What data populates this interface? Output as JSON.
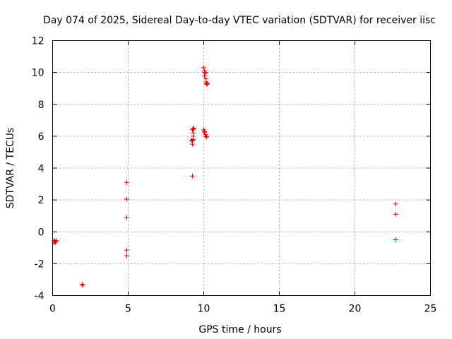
{
  "chart_data": {
    "type": "scatter",
    "title": "Day 074 of 2025, Sidereal Day-to-day VTEC variation (SDTVAR) for receiver iisc",
    "xlabel": "GPS time / hours",
    "ylabel": "SDTVAR / TECUs",
    "xlim": [
      0,
      25
    ],
    "ylim": [
      -4,
      12
    ],
    "xticks": [
      0,
      5,
      10,
      15,
      20,
      25
    ],
    "yticks": [
      -4,
      -2,
      0,
      2,
      4,
      6,
      8,
      10,
      12
    ],
    "grid": true,
    "marker": "+",
    "color": "#e00000",
    "points": [
      [
        0.1,
        -0.55
      ],
      [
        0.15,
        -0.6
      ],
      [
        0.2,
        -0.65
      ],
      [
        0.25,
        -0.55
      ],
      [
        0.1,
        -0.7
      ],
      [
        1.95,
        -3.3
      ],
      [
        2.0,
        -3.35
      ],
      [
        4.9,
        3.1
      ],
      [
        4.9,
        2.05
      ],
      [
        4.9,
        0.9
      ],
      [
        4.9,
        -1.15
      ],
      [
        4.9,
        -1.5
      ],
      [
        9.25,
        3.5
      ],
      [
        9.25,
        5.5
      ],
      [
        9.25,
        5.7
      ],
      [
        9.3,
        5.8
      ],
      [
        9.3,
        6.0
      ],
      [
        9.3,
        6.2
      ],
      [
        9.25,
        6.4
      ],
      [
        9.3,
        6.45
      ],
      [
        9.35,
        6.5
      ],
      [
        9.2,
        5.75
      ],
      [
        10.0,
        6.4
      ],
      [
        10.05,
        6.25
      ],
      [
        10.1,
        6.1
      ],
      [
        10.15,
        6.0
      ],
      [
        10.2,
        5.95
      ],
      [
        10.05,
        6.3
      ],
      [
        10.0,
        10.3
      ],
      [
        10.05,
        10.1
      ],
      [
        10.1,
        9.95
      ],
      [
        10.05,
        9.8
      ],
      [
        10.15,
        9.6
      ],
      [
        10.15,
        9.4
      ],
      [
        10.2,
        9.3
      ],
      [
        10.25,
        9.3
      ],
      [
        10.2,
        9.25
      ],
      [
        10.1,
        10.0
      ],
      [
        22.7,
        1.75
      ],
      [
        22.7,
        1.1
      ],
      [
        22.7,
        -0.5
      ]
    ]
  }
}
